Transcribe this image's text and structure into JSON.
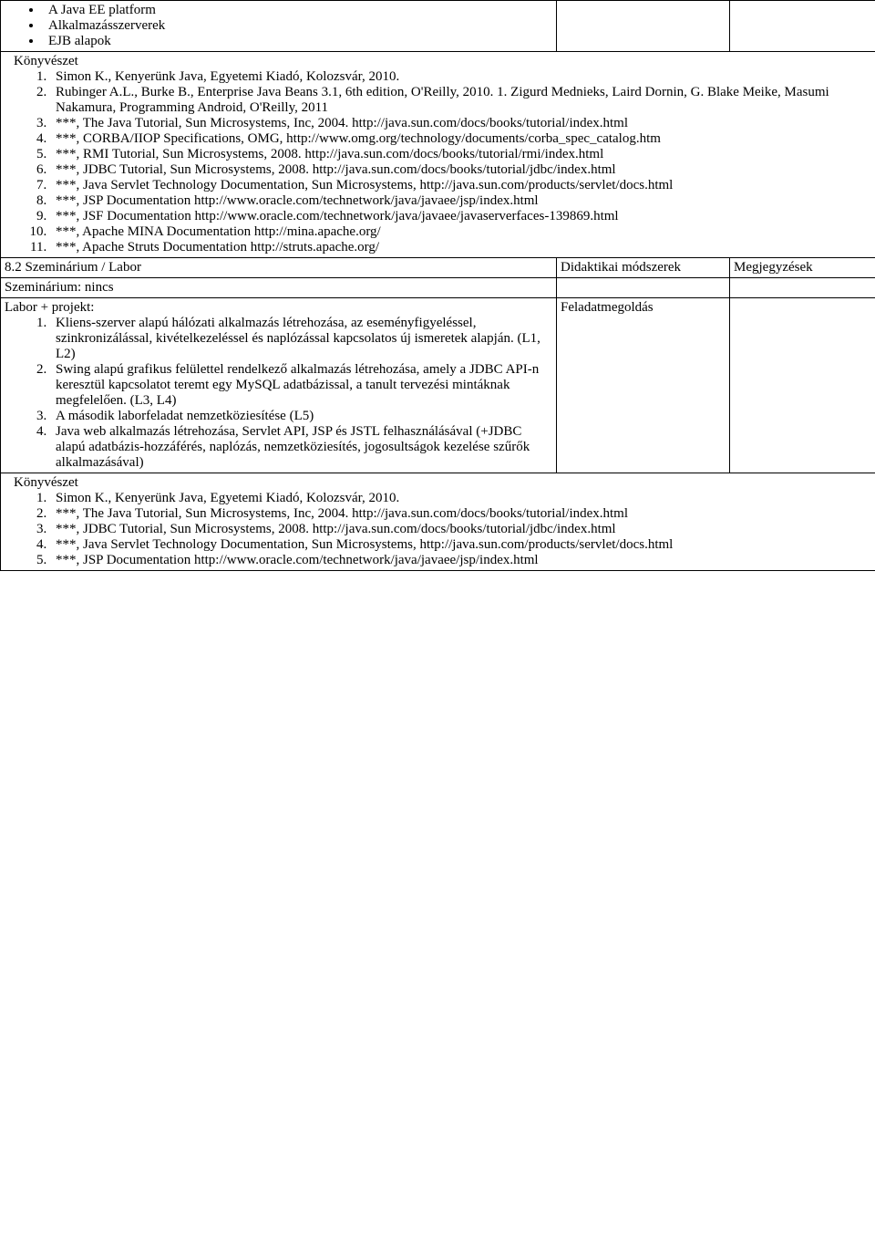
{
  "row1": {
    "bullets": [
      "A Java EE platform",
      "Alkalmazásszerverek",
      "EJB alapok"
    ]
  },
  "section1": {
    "heading": "Könyvészet",
    "items": [
      "Simon K., Kenyerünk Java, Egyetemi Kiadó, Kolozsvár, 2010.",
      "Rubinger A.L., Burke B., Enterprise Java Beans 3.1, 6th edition, O'Reilly, 2010. 1. Zigurd Mednieks, Laird Dornin, G. Blake Meike, Masumi Nakamura, Programming Android, O'Reilly, 2011",
      "***, The Java Tutorial, Sun Microsystems, Inc, 2004. http://java.sun.com/docs/books/tutorial/index.html",
      "***, CORBA/IIOP Specifications, OMG, http://www.omg.org/technology/documents/corba_spec_catalog.htm",
      "***, RMI Tutorial, Sun Microsystems, 2008. http://java.sun.com/docs/books/tutorial/rmi/index.html",
      "***, JDBC Tutorial, Sun Microsystems, 2008. http://java.sun.com/docs/books/tutorial/jdbc/index.html",
      "***, Java Servlet Technology Documentation, Sun Microsystems, http://java.sun.com/products/servlet/docs.html",
      "***, JSP Documentation http://www.oracle.com/technetwork/java/javaee/jsp/index.html",
      "***, JSF Documentation http://www.oracle.com/technetwork/java/javaee/javaserverfaces-139869.html",
      "***, Apache MINA Documentation http://mina.apache.org/",
      "***, Apache Struts Documentation http://struts.apache.org/"
    ]
  },
  "row3": {
    "c1": "8.2 Szeminárium / Labor",
    "c2": "Didaktikai módszerek",
    "c3": "Megjegyzések"
  },
  "row4": {
    "c1": "Szeminárium: nincs"
  },
  "row5": {
    "heading": "Labor + projekt:",
    "items": [
      "Kliens-szerver alapú hálózati alkalmazás létrehozása, az eseményfigyeléssel, szinkronizálással, kivételkezeléssel és naplózással kapcsolatos új ismeretek alapján. (L1, L2)",
      "Swing alapú grafikus felülettel rendelkező alkalmazás létrehozása, amely a JDBC API-n keresztül kapcsolatot teremt egy MySQL adatbázissal, a tanult tervezési mintáknak megfelelően. (L3, L4)",
      "A második laborfeladat nemzetköziesítése (L5)",
      "Java web alkalmazás létrehozása, Servlet API, JSP és JSTL felhasználásával (+JDBC alapú adatbázis-hozzáférés, naplózás, nemzetköziesítés, jogosultságok kezelése szűrők alkalmazásával)"
    ],
    "method": "Feladatmegoldás"
  },
  "section2": {
    "heading": "Könyvészet",
    "items": [
      "Simon K., Kenyerünk Java, Egyetemi Kiadó, Kolozsvár, 2010.",
      "***, The Java Tutorial, Sun Microsystems, Inc, 2004. http://java.sun.com/docs/books/tutorial/index.html",
      "***, JDBC Tutorial, Sun Microsystems, 2008. http://java.sun.com/docs/books/tutorial/jdbc/index.html",
      "***, Java Servlet Technology Documentation, Sun Microsystems, http://java.sun.com/products/servlet/docs.html",
      "***, JSP Documentation http://www.oracle.com/technetwork/java/javaee/jsp/index.html"
    ]
  }
}
